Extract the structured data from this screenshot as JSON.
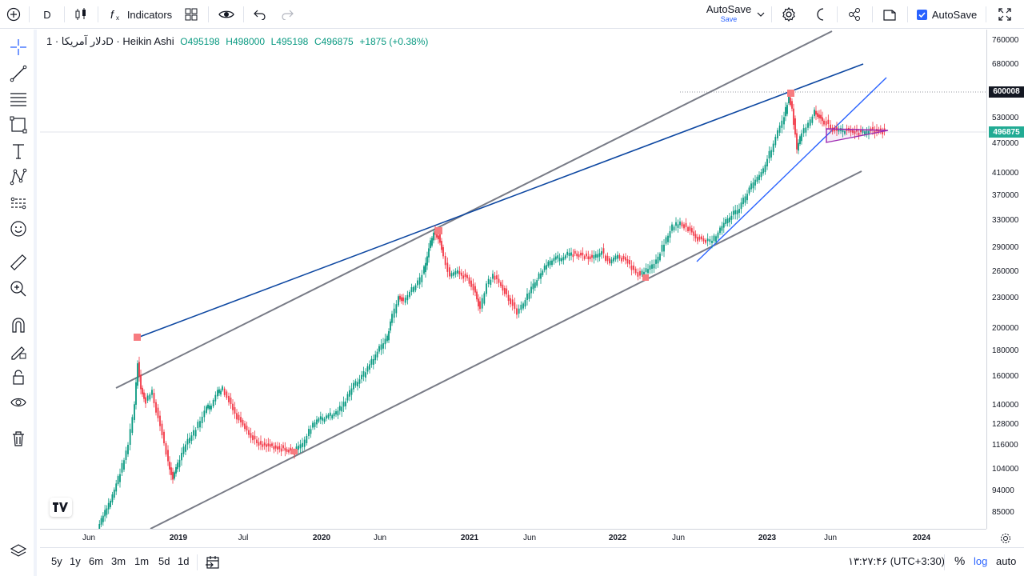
{
  "toolbar": {
    "symbol": "D",
    "indicators_label": "Indicators",
    "autosave_label": "AutoSave",
    "autosave_sub": "Save",
    "autosave_check_label": "AutoSave"
  },
  "legend": {
    "title": "دلار آمریکا · 1D · Heikin Ashi",
    "open": "O495198",
    "high": "H498000",
    "low": "L495198",
    "close": "C496875",
    "change": "+1875 (+0.38%)"
  },
  "price_axis": {
    "labels": [
      "760000",
      "680000",
      "600008",
      "530000",
      "496875",
      "470000",
      "410000",
      "370000",
      "330000",
      "290000",
      "260000",
      "230000",
      "200000",
      "180000",
      "160000",
      "140000",
      "128000",
      "116000",
      "104000",
      "94000",
      "85000"
    ],
    "high_tag": "600008",
    "last_tag": "496875",
    "last_color": "#22ab94"
  },
  "time_axis": {
    "labels": [
      "Jun",
      "2019",
      "Jul",
      "2020",
      "Jun",
      "2021",
      "Jun",
      "2022",
      "Jun",
      "2023",
      "Jun",
      "2024"
    ]
  },
  "bottom": {
    "ranges": [
      "5y",
      "1y",
      "6m",
      "3m",
      "1m",
      "5d",
      "1d"
    ],
    "clock": "۱۳:۲۷:۴۶ (UTC+3:30)",
    "percent": "%",
    "log": "log",
    "auto": "auto"
  },
  "colors": {
    "up": "#089981",
    "down": "#f23645",
    "trend_blue": "#0d47a1",
    "trend_light_blue": "#2962ff",
    "channel_gray": "#787b86",
    "triangle": "#9c27b0",
    "marker": "#f77c80",
    "accent": "#2962ff"
  },
  "icons": {
    "left": [
      "crosshair-icon",
      "trendline-icon",
      "fib-icon",
      "rectangle-icon",
      "text-icon",
      "pattern-icon",
      "prediction-icon",
      "emoji-icon",
      "ruler-icon",
      "zoom-icon",
      "magnet-icon",
      "lock-drawings-icon",
      "lock-icon",
      "eye-icon",
      "trash-icon"
    ]
  }
}
